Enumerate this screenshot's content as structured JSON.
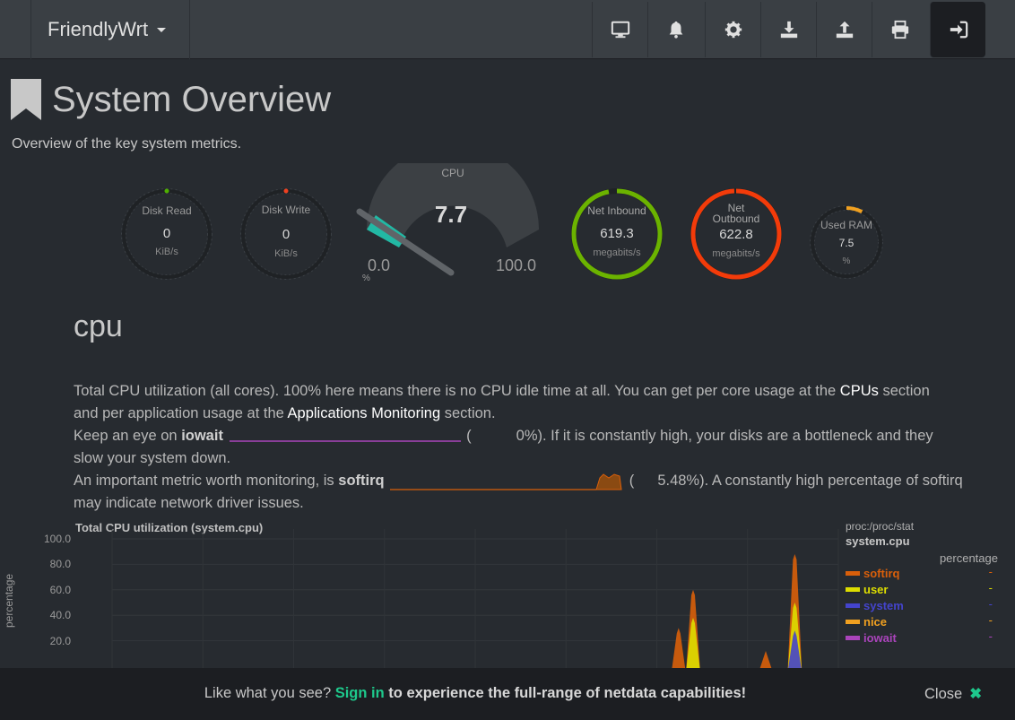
{
  "navbar": {
    "brand": "FriendlyWrt",
    "buttons": [
      {
        "icon": "monitor-icon"
      },
      {
        "icon": "bell-icon"
      },
      {
        "icon": "gear-icon"
      },
      {
        "icon": "download-icon"
      },
      {
        "icon": "upload-icon"
      },
      {
        "icon": "print-icon"
      },
      {
        "icon": "sign-in-icon"
      }
    ]
  },
  "header": {
    "title": "System Overview",
    "subtitle": "Overview of the key system metrics."
  },
  "gauges": {
    "disk_read": {
      "label": "Disk Read",
      "value": "0",
      "units": "KiB/s",
      "level": 0.0,
      "color": "#4eb000"
    },
    "disk_write": {
      "label": "Disk Write",
      "value": "0",
      "units": "KiB/s",
      "level": 0.0,
      "color": "#f04020"
    },
    "cpu": {
      "label": "CPU",
      "value": "7.7",
      "min": "0.0",
      "max": "100.0",
      "units": "%",
      "level": 0.077,
      "color": "#22b8a4"
    },
    "net_inbound": {
      "label": "Net Inbound",
      "value": "619.3",
      "units": "megabits/s",
      "level": 0.97,
      "color": "#6bb300"
    },
    "net_outbound": {
      "label": "Net Outbound",
      "label_line1": "Net",
      "label_line2": "Outbound",
      "value": "622.8",
      "units": "megabits/s",
      "level": 0.99,
      "color": "#f33b0a"
    },
    "used_ram": {
      "label": "Used RAM",
      "value": "7.5",
      "units": "%",
      "level": 0.075,
      "color": "#f0a020"
    }
  },
  "section": {
    "title": "cpu",
    "p1_a": "Total CPU utilization (all cores). 100% here means there is no CPU idle time at all. You can get per core usage at the ",
    "p1_link1": "CPUs",
    "p1_b": " section",
    "p1_c": "and per application usage at the ",
    "p1_link2": "Applications Monitoring",
    "p1_d": " section.",
    "p2_a": "Keep an eye on ",
    "p2_b": "iowait",
    "p2_c": " (",
    "p2_val": "0%",
    "p2_d": "). If it is constantly high, your disks are a bottleneck and they",
    "p2_e": "slow your system down.",
    "p3_a": "An important metric worth monitoring, is ",
    "p3_b": "softirq",
    "p3_c": " (",
    "p3_val": "5.48%",
    "p3_d": "). A constantly high percentage of softirq",
    "p3_e": "may indicate network driver issues."
  },
  "chart_data": {
    "type": "area",
    "title": "Total CPU utilization (system.cpu)",
    "ylabel": "percentage",
    "yticks": [
      "100.0",
      "80.0",
      "60.0",
      "40.0",
      "20.0"
    ],
    "ylim": [
      0,
      100
    ],
    "source": "proc:/proc/stat",
    "context": "system.cpu",
    "units": "percentage",
    "series": [
      {
        "name": "softirq",
        "color": "#d95f0a",
        "value": "-",
        "spikes": [
          {
            "t": 0.8,
            "v": 60
          },
          {
            "t": 0.94,
            "v": 88
          },
          {
            "t": 0.78,
            "v": 30
          },
          {
            "t": 0.9,
            "v": 12
          }
        ]
      },
      {
        "name": "user",
        "color": "#dddd00",
        "value": "-",
        "spikes": [
          {
            "t": 0.8,
            "v": 38
          },
          {
            "t": 0.94,
            "v": 50
          }
        ]
      },
      {
        "name": "system",
        "color": "#4444cc",
        "value": "-",
        "spikes": [
          {
            "t": 0.94,
            "v": 28
          }
        ]
      },
      {
        "name": "nice",
        "color": "#f0a020",
        "value": "-",
        "spikes": []
      },
      {
        "name": "iowait",
        "color": "#aa44bb",
        "value": "-",
        "spikes": []
      }
    ]
  },
  "banner": {
    "msg_a": "Like what you see? ",
    "signin": "Sign in",
    "msg_b": " to experience the full-range of netdata capabilities!",
    "close": "Close"
  }
}
